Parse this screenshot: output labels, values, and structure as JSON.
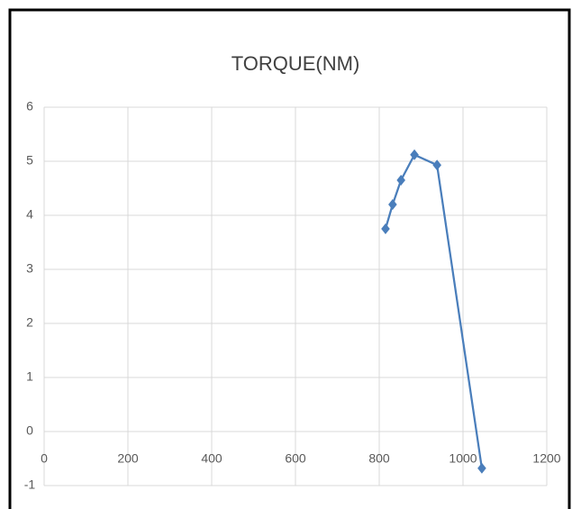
{
  "chart_data": {
    "type": "line",
    "title": "TORQUE(NM)",
    "x": [
      815,
      832,
      852,
      884,
      938,
      1045
    ],
    "series": [
      {
        "name": "TORQUE(NM)",
        "color": "#4a7ebb",
        "values": [
          3.75,
          4.2,
          4.65,
          5.12,
          4.93,
          -0.68
        ]
      }
    ],
    "xlim": [
      0,
      1200
    ],
    "xticks": [
      0,
      200,
      400,
      600,
      800,
      1000,
      1200
    ],
    "ylim": [
      -1,
      6
    ],
    "yticks": [
      -1,
      0,
      1,
      2,
      3,
      4,
      5,
      6
    ],
    "grid": true,
    "marker": "diamond"
  }
}
